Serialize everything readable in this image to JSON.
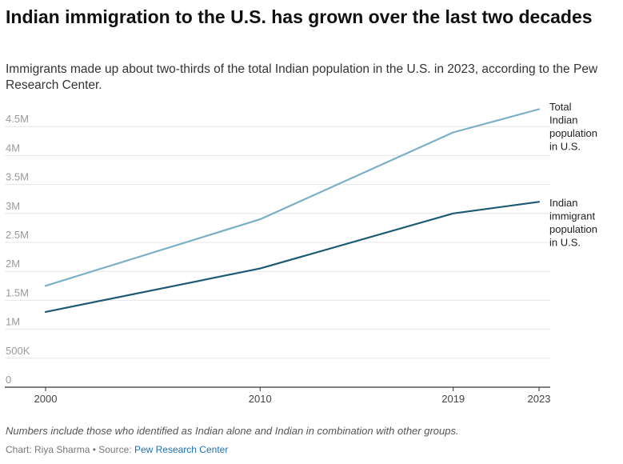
{
  "header": {
    "title": "Indian immigration to the U.S. has grown over the last two decades",
    "subtitle": "Immigrants made up about two-thirds of the total Indian population in the U.S. in 2023, according to the Pew Research Center."
  },
  "footer": {
    "note": "Numbers include those who identified as Indian alone and Indian in combination with other groups.",
    "credit_prefix": "Chart: Riya Sharma • Source: ",
    "source_name": "Pew Research Center"
  },
  "chart_data": {
    "type": "line",
    "x": [
      2000,
      2010,
      2019,
      2023
    ],
    "x_tick_labels": [
      "2000",
      "2010",
      "2019",
      "2023"
    ],
    "ylim": [
      0,
      4800000
    ],
    "y_ticks": [
      0,
      500000,
      1000000,
      1500000,
      2000000,
      2500000,
      3000000,
      3500000,
      4000000,
      4500000
    ],
    "y_tick_labels": [
      "0",
      "500K",
      "1M",
      "1.5M",
      "2M",
      "2.5M",
      "3M",
      "3.5M",
      "4M",
      "4.5M"
    ],
    "grid": true,
    "series": [
      {
        "name": "Total Indian population in U.S.",
        "label_lines": [
          "Total",
          "Indian",
          "population",
          "in U.S."
        ],
        "values": [
          1750000,
          2900000,
          4400000,
          4800000
        ],
        "color": "#7bafc7"
      },
      {
        "name": "Indian immigrant population in U.S.",
        "label_lines": [
          "Indian",
          "immigrant",
          "population",
          "in U.S."
        ],
        "values": [
          1300000,
          2050000,
          3000000,
          3200000
        ],
        "color": "#1d5a73"
      }
    ]
  }
}
